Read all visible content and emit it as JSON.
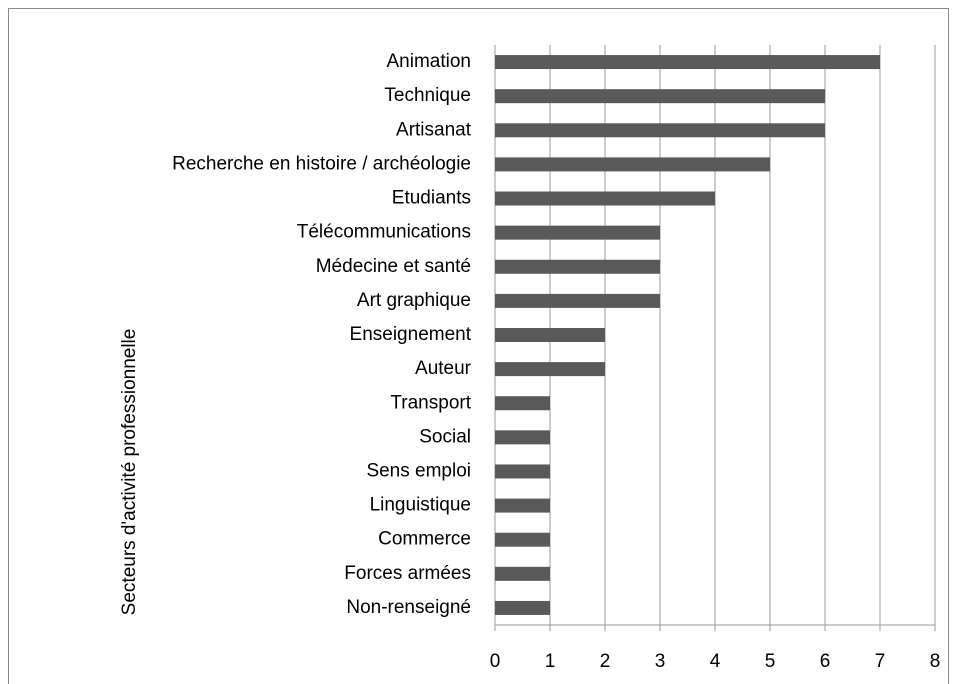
{
  "chart_data": {
    "type": "bar",
    "orientation": "horizontal",
    "ylabel": "Secteurs d'activité professionnelle",
    "categories": [
      "Animation",
      "Technique",
      "Artisanat",
      "Recherche en histoire / archéologie",
      "Etudiants",
      "Télécommunications",
      "Médecine et santé",
      "Art graphique",
      "Enseignement",
      "Auteur",
      "Transport",
      "Social",
      "Sens emploi",
      "Linguistique",
      "Commerce",
      "Forces armées",
      "Non-renseigné"
    ],
    "values": [
      7,
      6,
      6,
      5,
      4,
      3,
      3,
      3,
      2,
      2,
      1,
      1,
      1,
      1,
      1,
      1,
      1
    ],
    "color": "#595959",
    "xlim": [
      0,
      8
    ],
    "xticks": [
      0,
      1,
      2,
      3,
      4,
      5,
      6,
      7,
      8
    ],
    "grid": true
  }
}
